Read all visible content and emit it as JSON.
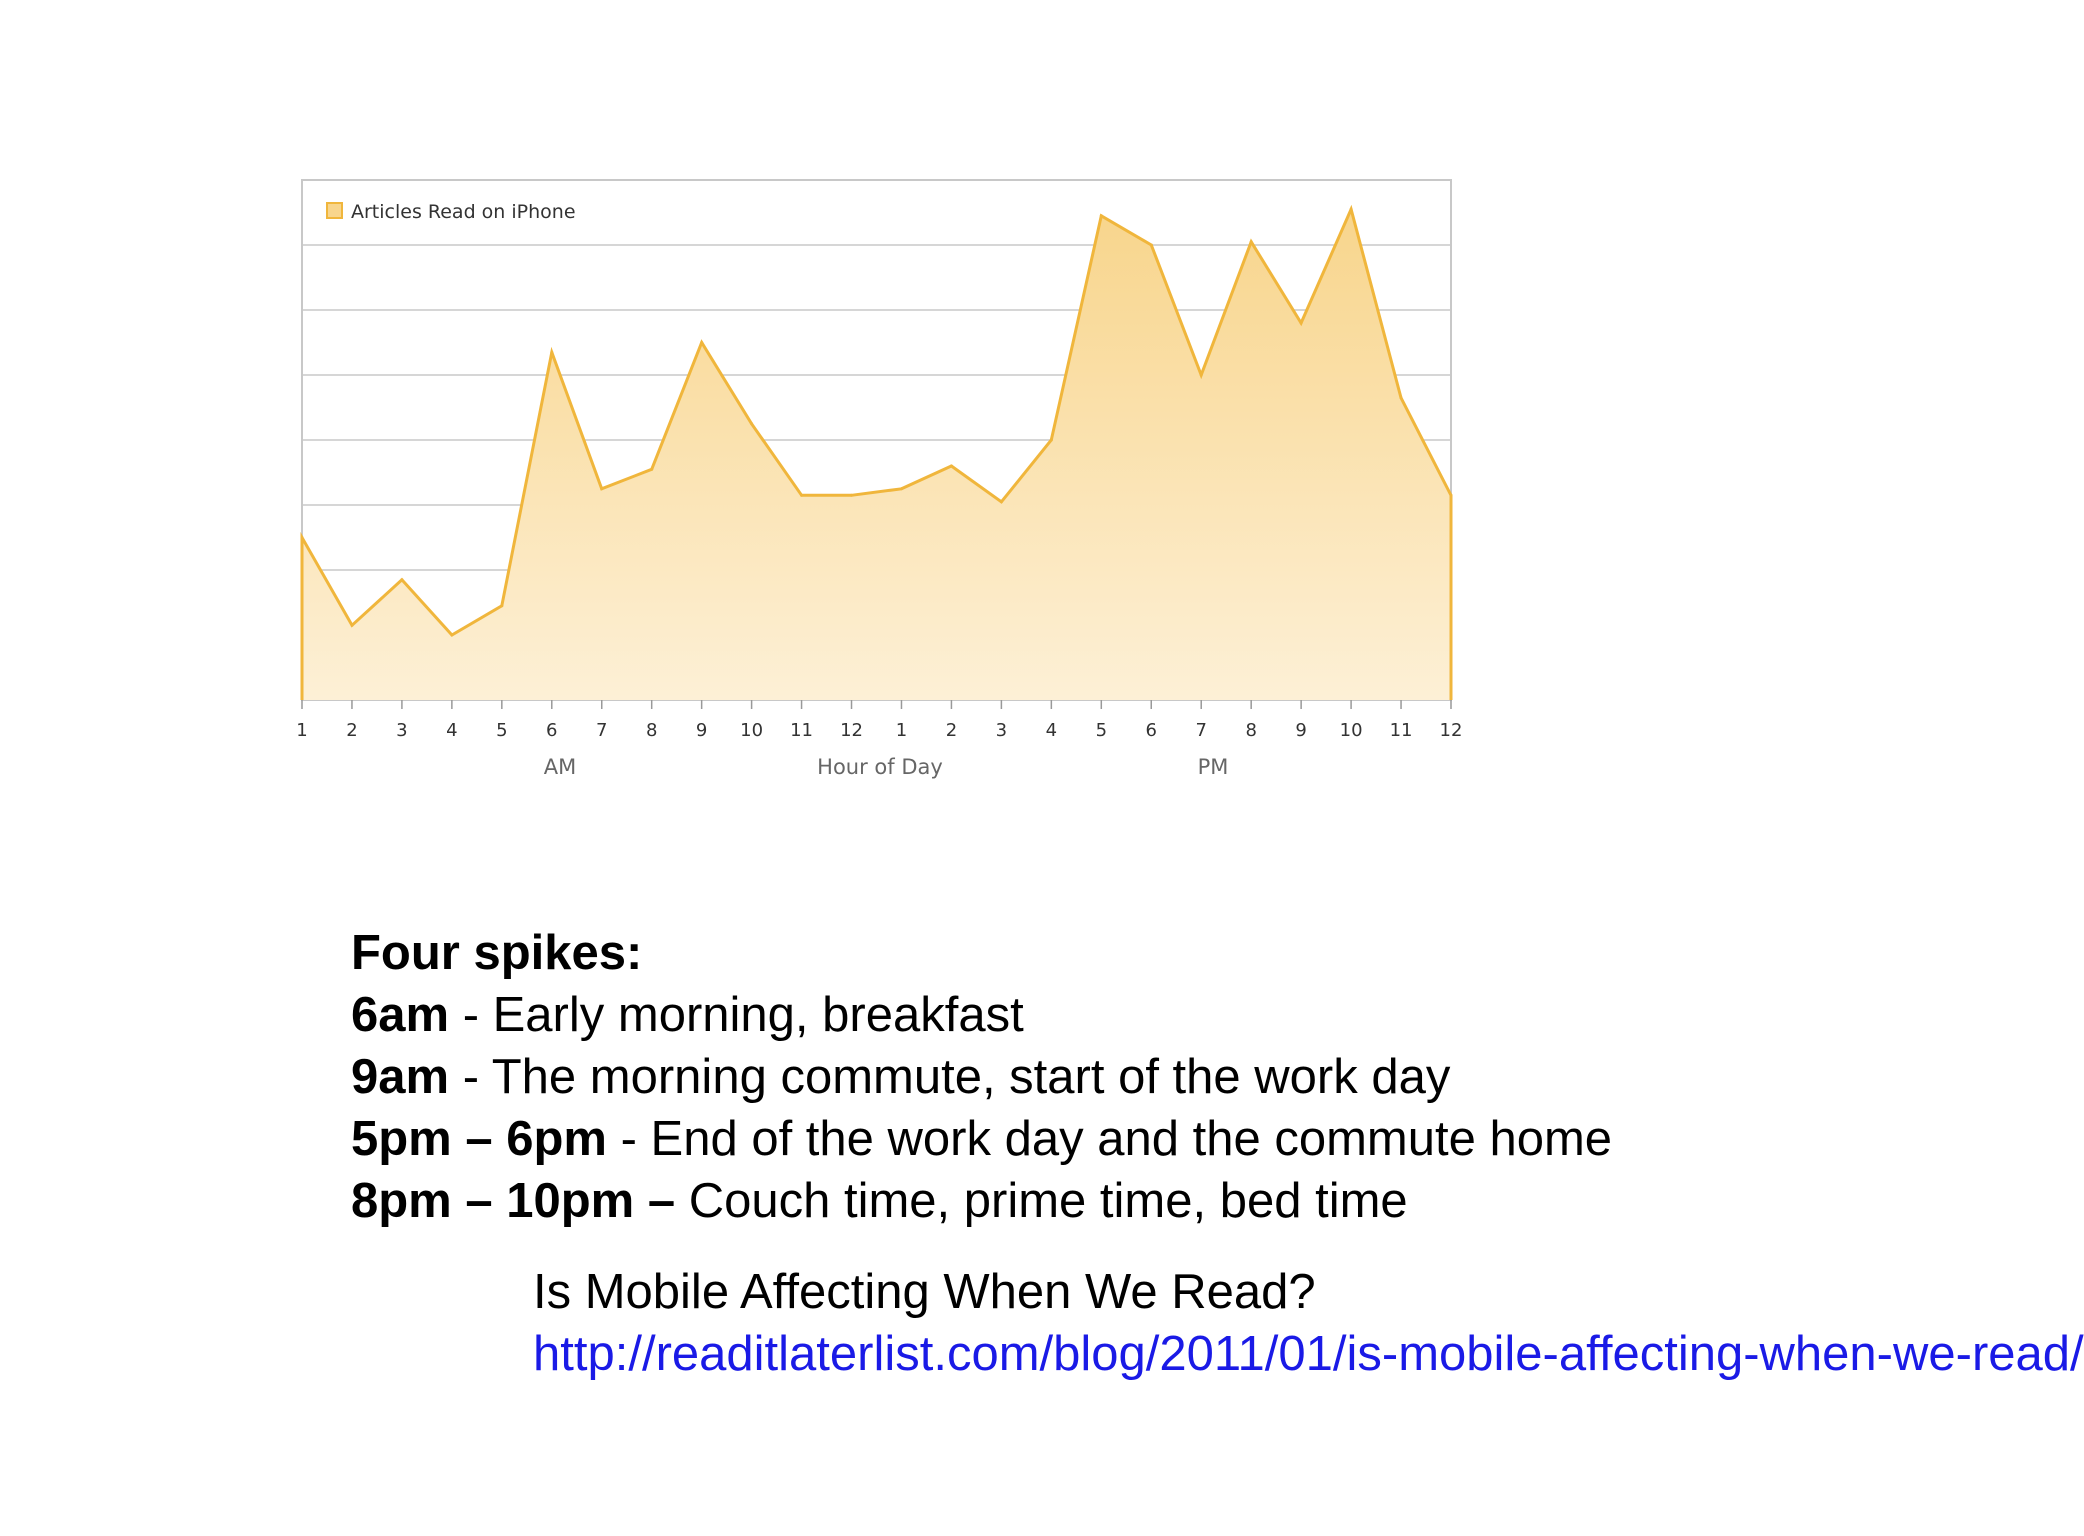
{
  "chart_data": {
    "type": "area",
    "legend": "Articles Read on iPhone",
    "legend_position": "top-left",
    "x": [
      "1",
      "2",
      "3",
      "4",
      "5",
      "6",
      "7",
      "8",
      "9",
      "10",
      "11",
      "12",
      "1",
      "2",
      "3",
      "4",
      "5",
      "6",
      "7",
      "8",
      "9",
      "10",
      "11",
      "12"
    ],
    "values": [
      2.5,
      1.15,
      1.85,
      1.0,
      1.45,
      5.35,
      3.25,
      3.55,
      5.5,
      4.25,
      3.15,
      3.15,
      3.25,
      3.6,
      3.05,
      4.0,
      7.45,
      7.0,
      5.0,
      7.05,
      5.8,
      7.55,
      4.65,
      3.15
    ],
    "ylim": [
      0,
      8
    ],
    "grid": true,
    "xlabel": "Hour of Day",
    "period_labels": [
      "AM",
      "PM"
    ],
    "ylabel": "",
    "colors": {
      "line": "#f0b63c",
      "fill_top": "#f8d58c",
      "fill_bottom": "#fdf0d6",
      "grid": "#c8c8c8",
      "axis_text": "#333333"
    }
  },
  "notes": {
    "heading": "Four spikes:",
    "items": [
      {
        "time": "6am",
        "sep": " - ",
        "desc": "Early morning, breakfast"
      },
      {
        "time": "9am",
        "sep": " - ",
        "desc": "The morning commute, start of the work day"
      },
      {
        "time": "5pm – 6pm",
        "sep": " - ",
        "desc": "End of the work day and the commute home"
      },
      {
        "time": "8pm – 10pm –",
        "sep": " ",
        "desc": "Couch time, prime time, bed time"
      }
    ]
  },
  "source": {
    "title": "Is Mobile Affecting When We Read?",
    "url": "http://readitlaterlist.com/blog/2011/01/is-mobile-affecting-when-we-read/",
    "link_color": "#1a1ae6"
  }
}
